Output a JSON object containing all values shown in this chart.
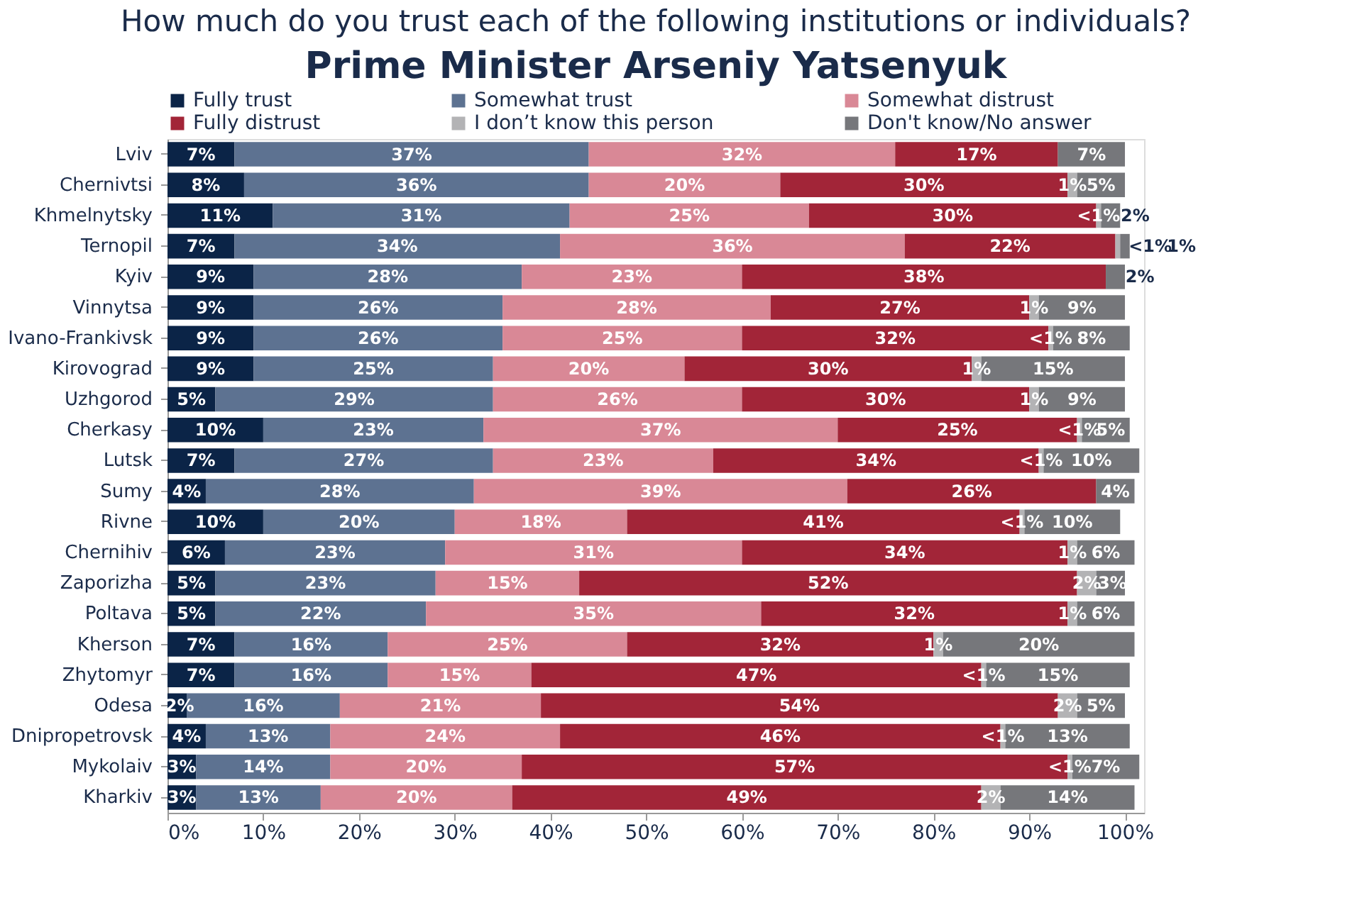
{
  "chart_data": {
    "type": "bar",
    "orientation": "horizontal",
    "stacked": true,
    "title": "How much do you trust each of the following institutions or individuals?",
    "subtitle": "Prime Minister Arseniy Yatsenyuk",
    "categories": [
      "Lviv",
      "Chernivtsi",
      "Khmelnytsky",
      "Ternopil",
      "Kyiv",
      "Vinnytsa",
      "Ivano-Frankivsk",
      "Kirovograd",
      "Uzhgorod",
      "Cherkasy",
      "Lutsk",
      "Sumy",
      "Rivne",
      "Chernihiv",
      "Zaporizha",
      "Poltava",
      "Kherson",
      "Zhytomyr",
      "Odesa",
      "Dnipropetrovsk",
      "Mykolaiv",
      "Kharkiv"
    ],
    "series": [
      {
        "name": "Fully trust",
        "color": "#0b2447",
        "values": [
          7,
          8,
          11,
          7,
          9,
          9,
          9,
          9,
          5,
          10,
          7,
          4,
          10,
          6,
          5,
          5,
          7,
          7,
          2,
          4,
          3,
          3
        ],
        "value_labels": [
          "7%",
          "8%",
          "11%",
          "7%",
          "9%",
          "9%",
          "9%",
          "9%",
          "5%",
          "10%",
          "7%",
          "4%",
          "10%",
          "6%",
          "5%",
          "5%",
          "7%",
          "7%",
          "2%",
          "4%",
          "3%",
          "3%"
        ]
      },
      {
        "name": "Somewhat trust",
        "color": "#5d7291",
        "values": [
          37,
          36,
          31,
          34,
          28,
          26,
          26,
          25,
          29,
          23,
          27,
          28,
          20,
          23,
          23,
          22,
          16,
          16,
          16,
          13,
          14,
          13
        ],
        "value_labels": [
          "37%",
          "36%",
          "31%",
          "34%",
          "28%",
          "26%",
          "26%",
          "25%",
          "29%",
          "23%",
          "27%",
          "28%",
          "20%",
          "23%",
          "23%",
          "22%",
          "16%",
          "16%",
          "16%",
          "13%",
          "14%",
          "13%"
        ]
      },
      {
        "name": "Somewhat distrust",
        "color": "#d98896",
        "values": [
          32,
          20,
          25,
          36,
          23,
          28,
          25,
          20,
          26,
          37,
          23,
          39,
          18,
          31,
          15,
          35,
          25,
          15,
          21,
          24,
          20,
          20
        ],
        "value_labels": [
          "32%",
          "20%",
          "25%",
          "36%",
          "23%",
          "28%",
          "25%",
          "20%",
          "26%",
          "37%",
          "23%",
          "39%",
          "18%",
          "31%",
          "15%",
          "35%",
          "25%",
          "15%",
          "21%",
          "24%",
          "20%",
          "20%"
        ]
      },
      {
        "name": "Fully distrust",
        "color": "#a22538",
        "values": [
          17,
          30,
          30,
          22,
          38,
          27,
          32,
          30,
          30,
          25,
          34,
          26,
          41,
          34,
          52,
          32,
          32,
          47,
          54,
          46,
          57,
          49
        ],
        "value_labels": [
          "17%",
          "30%",
          "30%",
          "22%",
          "38%",
          "27%",
          "32%",
          "30%",
          "30%",
          "25%",
          "34%",
          "26%",
          "41%",
          "34%",
          "52%",
          "32%",
          "32%",
          "47%",
          "54%",
          "46%",
          "57%",
          "49%"
        ]
      },
      {
        "name": "I don’t know this person",
        "color": "#b3b3b5",
        "values": [
          null,
          1,
          0.5,
          0.5,
          null,
          1,
          0.5,
          1,
          1,
          0.5,
          0.5,
          null,
          0.5,
          1,
          2,
          1,
          1,
          0.5,
          2,
          0.5,
          0.5,
          2
        ],
        "value_labels": [
          null,
          "1%",
          "<1%",
          "<1%",
          null,
          "1%",
          "<1%",
          "1%",
          "1%",
          "<1%",
          "<1%",
          null,
          "<1%",
          "1%",
          "2%",
          "1%",
          "1%",
          "<1%",
          "2%",
          "<1%",
          "<1%",
          "2%"
        ]
      },
      {
        "name": "Don't know/No answer",
        "color": "#76777b",
        "values": [
          7,
          5,
          2,
          1,
          2,
          9,
          8,
          15,
          9,
          5,
          10,
          4,
          10,
          6,
          3,
          6,
          20,
          15,
          5,
          13,
          7,
          14
        ],
        "value_labels": [
          "7%",
          "5%",
          "2%",
          "1%",
          "2%",
          "9%",
          "8%",
          "15%",
          "9%",
          "5%",
          "10%",
          "4%",
          "10%",
          "6%",
          "3%",
          "6%",
          "20%",
          "15%",
          "5%",
          "13%",
          "7%",
          "14%"
        ]
      }
    ],
    "xlim": [
      0,
      102
    ],
    "xticks": [
      {
        "value": 0,
        "label": "0%"
      },
      {
        "value": 10,
        "label": "10%"
      },
      {
        "value": 20,
        "label": "20%"
      },
      {
        "value": 30,
        "label": "30%"
      },
      {
        "value": 40,
        "label": "40%"
      },
      {
        "value": 50,
        "label": "50%"
      },
      {
        "value": 60,
        "label": "60%"
      },
      {
        "value": 70,
        "label": "70%"
      },
      {
        "value": 80,
        "label": "80%"
      },
      {
        "value": 90,
        "label": "90%"
      },
      {
        "value": 100,
        "label": "100%"
      }
    ],
    "legend": "top",
    "grid": false
  }
}
